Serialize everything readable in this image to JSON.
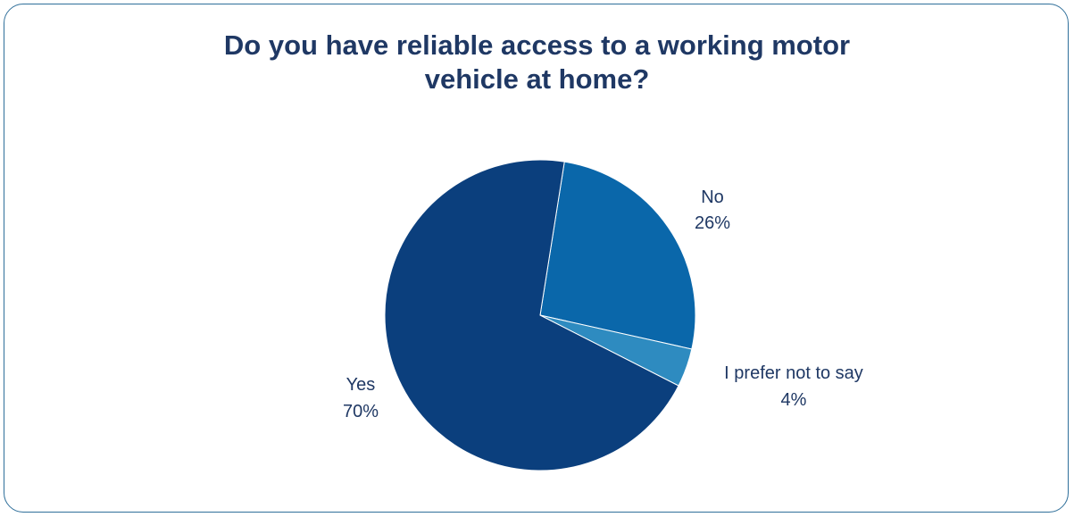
{
  "chart_data": {
    "type": "pie",
    "title_lines": [
      "Do you have reliable access to a working motor",
      "vehicle at home?"
    ],
    "slices": [
      {
        "label": "No",
        "value": 26,
        "value_text": "26%",
        "color": "#0a67aa"
      },
      {
        "label": "I prefer not to say",
        "value": 4,
        "value_text": "4%",
        "color": "#2e8bc0"
      },
      {
        "label": "Yes",
        "value": 70,
        "value_text": "70%",
        "color": "#0b3f7d"
      }
    ],
    "colors": {
      "title": "#1f3864",
      "label": "#1f3864",
      "border": "#2f6f9a"
    }
  }
}
